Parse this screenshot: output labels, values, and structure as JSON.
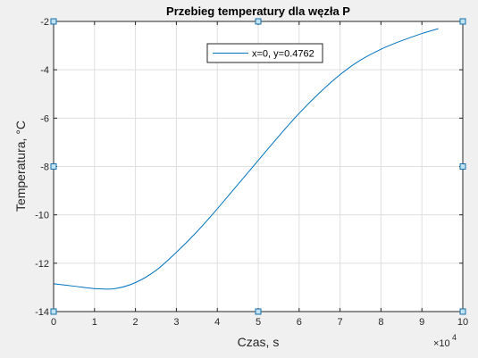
{
  "chart_data": {
    "type": "line",
    "title": "Przebieg temperatury dla węzła P",
    "xlabel": "Czas, s",
    "ylabel": "Temperatura, °C",
    "x_exponent_label": "×10",
    "x_exponent_power": "4",
    "xlim": [
      0,
      10
    ],
    "ylim": [
      -14,
      -2
    ],
    "xticks": [
      0,
      1,
      2,
      3,
      4,
      5,
      6,
      7,
      8,
      9,
      10
    ],
    "yticks": [
      -14,
      -12,
      -10,
      -8,
      -6,
      -4,
      -2
    ],
    "grid": true,
    "legend_position": "top-center",
    "series": [
      {
        "name": "x=0, y=0.4762",
        "color": "#0072bd",
        "x": [
          0,
          0.5,
          1.0,
          1.5,
          2.0,
          2.5,
          3.0,
          3.5,
          4.0,
          4.5,
          5.0,
          5.5,
          6.0,
          6.5,
          7.0,
          7.5,
          8.0,
          8.5,
          9.0,
          9.4
        ],
        "y": [
          -12.85,
          -12.95,
          -13.05,
          -13.05,
          -12.8,
          -12.3,
          -11.55,
          -10.7,
          -9.75,
          -8.75,
          -7.75,
          -6.75,
          -5.8,
          -4.95,
          -4.2,
          -3.6,
          -3.15,
          -2.8,
          -2.5,
          -2.3
        ]
      }
    ]
  }
}
